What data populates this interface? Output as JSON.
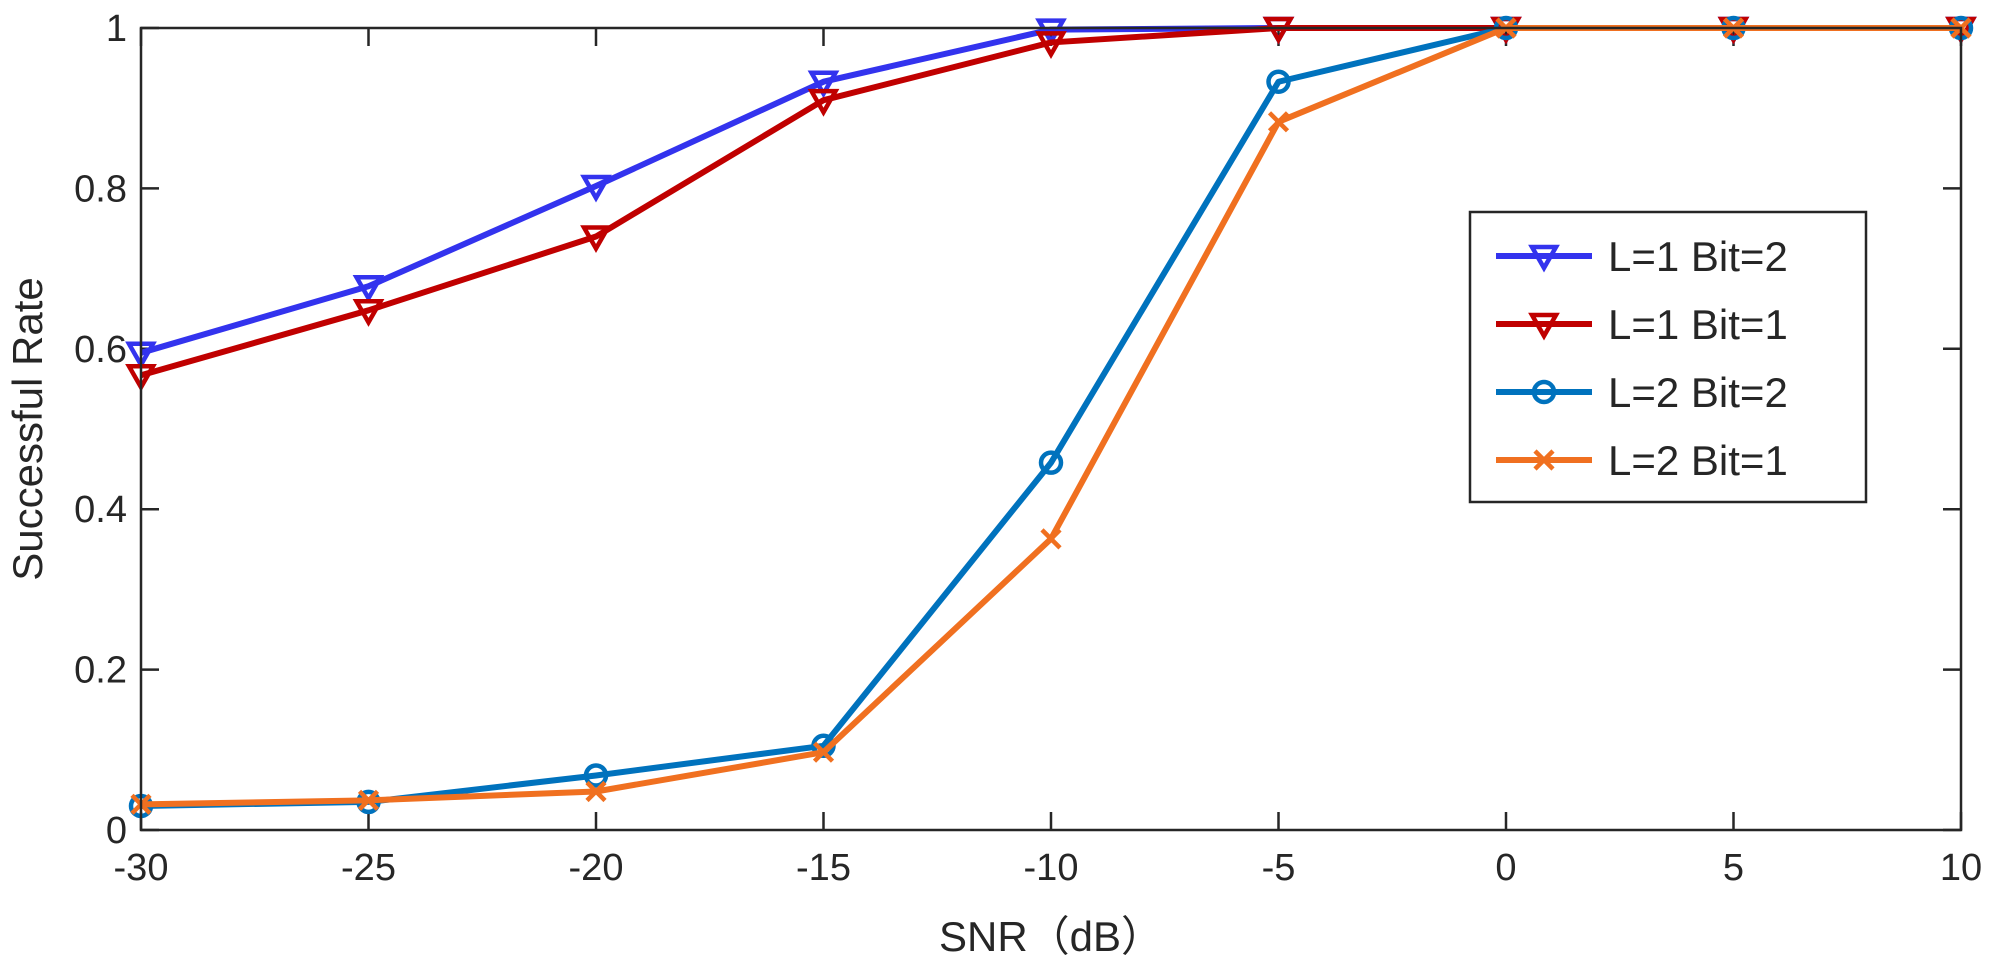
{
  "chart_data": {
    "type": "line",
    "title": "",
    "xlabel": "SNR（dB）",
    "ylabel": "Successful Rate",
    "x": [
      -30,
      -25,
      -20,
      -15,
      -10,
      -5,
      0,
      5,
      10
    ],
    "xlim": [
      -30,
      10
    ],
    "ylim": [
      0,
      1
    ],
    "x_ticks": [
      -30,
      -25,
      -20,
      -15,
      -10,
      -5,
      0,
      5,
      10
    ],
    "y_ticks": [
      0,
      0.2,
      0.4,
      0.6,
      0.8,
      1
    ],
    "x_tick_labels": [
      "-30",
      "-25",
      "-20",
      "-15",
      "-10",
      "-5",
      "0",
      "5",
      "10"
    ],
    "y_tick_labels": [
      "0",
      "0.2",
      "0.4",
      "0.6",
      "0.8",
      "1"
    ],
    "grid": false,
    "legend_position": "right",
    "series": [
      {
        "name": "L=1 Bit=2",
        "color": "#3333ee",
        "marker": "triangle-down",
        "values": [
          0.595,
          0.678,
          0.803,
          0.933,
          0.998,
          1.0,
          1.0,
          1.0,
          1.0
        ]
      },
      {
        "name": "L=1 Bit=1",
        "color": "#c00000",
        "marker": "triangle-down",
        "values": [
          0.567,
          0.648,
          0.74,
          0.91,
          0.982,
          1.0,
          1.0,
          1.0,
          1.0
        ]
      },
      {
        "name": "L=2 Bit=2",
        "color": "#0072bd",
        "marker": "circle",
        "values": [
          0.03,
          0.035,
          0.068,
          0.105,
          0.458,
          0.933,
          1.0,
          1.0,
          1.0
        ]
      },
      {
        "name": "L=2 Bit=1",
        "color": "#f07020",
        "marker": "x",
        "values": [
          0.032,
          0.037,
          0.048,
          0.097,
          0.363,
          0.883,
          1.0,
          1.0,
          1.0
        ]
      }
    ]
  }
}
